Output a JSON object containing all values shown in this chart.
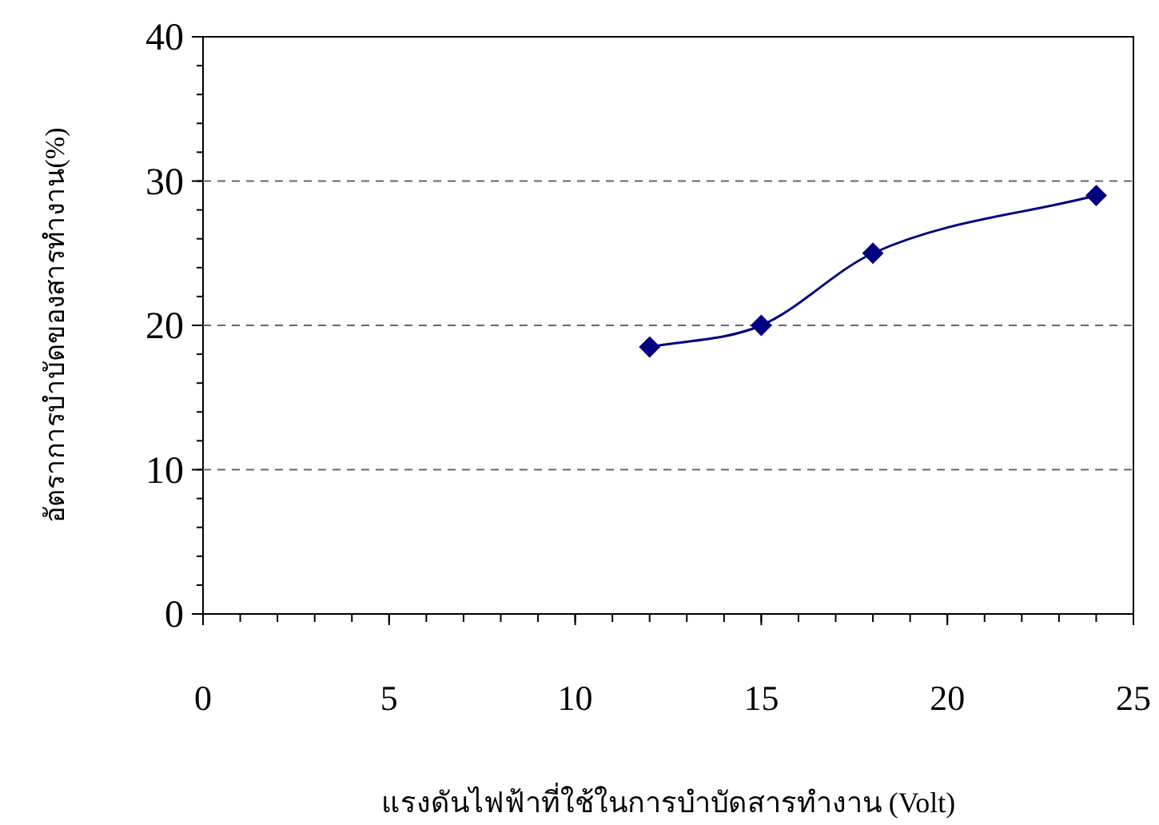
{
  "chart_data": {
    "type": "line",
    "xlabel": "แรงดันไฟฟ้าที่ใช้ในการบำบัดสารทำงาน (Volt)",
    "ylabel": "อัตราการบำบัดของสารทำงาน(%)",
    "x": [
      12,
      15,
      18,
      24
    ],
    "series": [
      {
        "color": "#000080",
        "values": [
          18.5,
          20,
          25,
          29
        ]
      }
    ],
    "xlim": [
      0,
      25
    ],
    "ylim": [
      0,
      40
    ],
    "xticks": [
      0,
      5,
      10,
      15,
      20,
      25
    ],
    "yticks": [
      0,
      10,
      20,
      30,
      40
    ],
    "grid": "y",
    "marker": "diamond"
  }
}
